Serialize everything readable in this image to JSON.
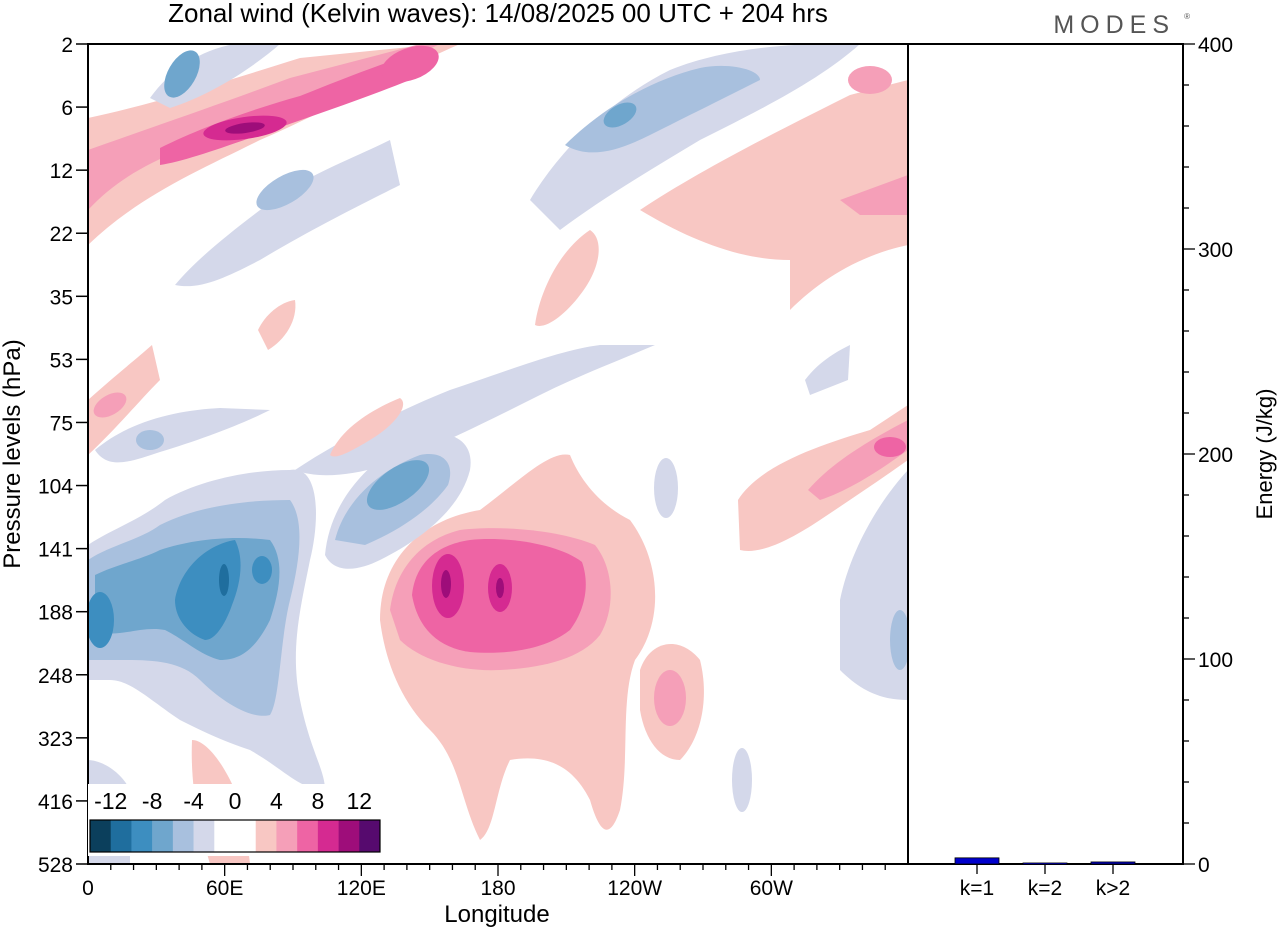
{
  "title": "Zonal wind (Kelvin waves):  14/08/2025  00 UTC  + 204 hrs",
  "logo": "MODES",
  "logo_mark": "®",
  "chart_data": [
    {
      "type": "heatmap",
      "title": "Zonal wind (Kelvin waves):  14/08/2025  00 UTC  + 204 hrs",
      "xlabel": "Longitude",
      "ylabel": "Pressure levels (hPa)",
      "x_range": [
        0,
        360
      ],
      "x_ticks": [
        {
          "lon": 0,
          "label": "0"
        },
        {
          "lon": 60,
          "label": "60E"
        },
        {
          "lon": 120,
          "label": "120E"
        },
        {
          "lon": 180,
          "label": "180"
        },
        {
          "lon": 240,
          "label": "120W"
        },
        {
          "lon": 300,
          "label": "60W"
        }
      ],
      "y_levels": [
        "2",
        "6",
        "12",
        "22",
        "35",
        "53",
        "75",
        "104",
        "141",
        "188",
        "248",
        "323",
        "416",
        "528"
      ],
      "colorbar": {
        "labels": [
          "-12",
          "-8",
          "-4",
          "0",
          "4",
          "8",
          "12"
        ],
        "colors": [
          "#0b3f5c",
          "#1f6e9e",
          "#3d8ec0",
          "#6fa6cd",
          "#a8c0de",
          "#d4d8ea",
          "#ffffff",
          "#ffffff",
          "#f8c7c3",
          "#f59fb8",
          "#ee64a4",
          "#d52a91",
          "#9e0d7a",
          "#560a6e"
        ]
      },
      "features": [
        {
          "sign": "positive",
          "level": 4,
          "lon_center": 175,
          "p_center": 155,
          "lon_extent": [
            125,
            240
          ],
          "p_extent": [
            90,
            528
          ]
        },
        {
          "sign": "positive",
          "level": 12,
          "lon_center": 155,
          "p_center": 155
        },
        {
          "sign": "positive",
          "level": 12,
          "lon_center": 180,
          "p_center": 155
        },
        {
          "sign": "negative",
          "level": -8,
          "lon_center": 55,
          "p_center": 170,
          "lon_extent": [
            0,
            100
          ],
          "p_extent": [
            110,
            300
          ]
        },
        {
          "sign": "negative",
          "level": -12,
          "lon_center": 60,
          "p_center": 165
        },
        {
          "sign": "negative",
          "level": -8,
          "lon_center": 128,
          "p_center": 110
        },
        {
          "sign": "positive",
          "level": 12,
          "lon_center": 65,
          "p_center": 7
        },
        {
          "sign": "positive",
          "level": 8,
          "lon_center": 345,
          "p_center": 95
        },
        {
          "sign": "negative",
          "level": -4,
          "lon_center": 235,
          "p_center": 7
        },
        {
          "sign": "positive",
          "level": 4,
          "lon_center": 250,
          "p_center": 230
        }
      ]
    },
    {
      "type": "bar",
      "ylabel": "Energy (J/kg)",
      "categories": [
        "k=1",
        "k=2",
        "k>2"
      ],
      "values": [
        3,
        0.5,
        1
      ],
      "ylim": [
        0,
        400
      ],
      "y_ticks": [
        "0",
        "100",
        "200",
        "300",
        "400"
      ],
      "bar_color": "#0000cc"
    }
  ]
}
